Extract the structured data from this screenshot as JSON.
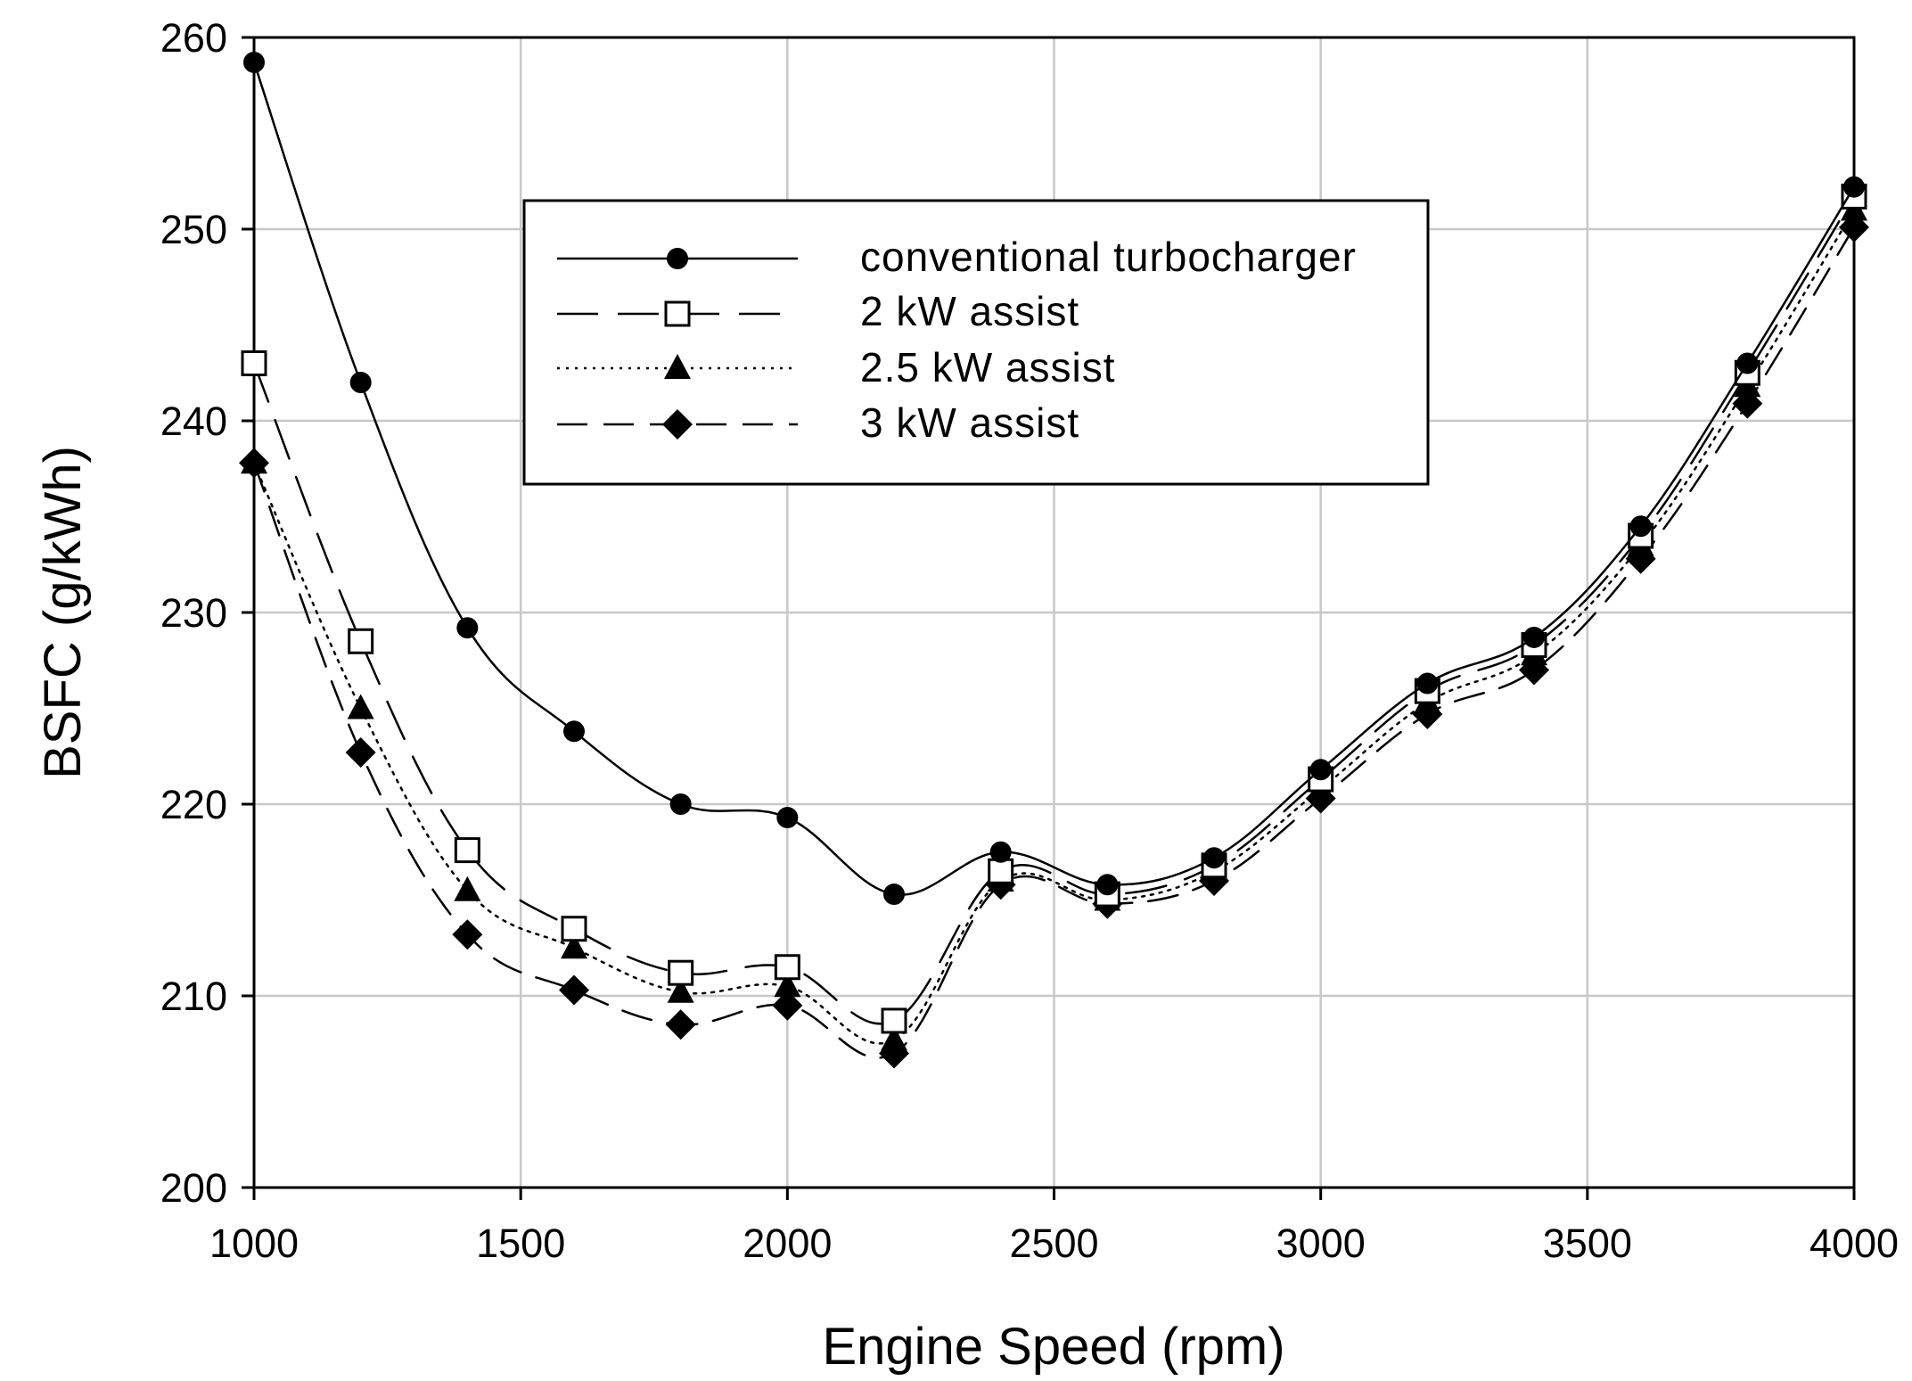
{
  "chart_data": {
    "type": "line",
    "title": "",
    "xlabel": "Engine Speed (rpm)",
    "ylabel": "BSFC (g/kWh)",
    "xlim": [
      1000,
      4000
    ],
    "ylim": [
      200,
      260
    ],
    "xticks": [
      1000,
      1500,
      2000,
      2500,
      3000,
      3500,
      4000
    ],
    "yticks": [
      200,
      210,
      220,
      230,
      240,
      250,
      260
    ],
    "grid": true,
    "legend_position": "top-center",
    "x": [
      1000,
      1200,
      1400,
      1600,
      1800,
      2000,
      2200,
      2400,
      2600,
      2800,
      3000,
      3200,
      3400,
      3600,
      3800,
      4000
    ],
    "series": [
      {
        "name": "conventional turbocharger",
        "marker": "circle",
        "line": "solid",
        "values": [
          258.7,
          242.0,
          229.2,
          223.8,
          220.0,
          219.3,
          215.3,
          217.5,
          215.8,
          217.2,
          221.8,
          226.3,
          228.7,
          234.5,
          243.0,
          252.2
        ]
      },
      {
        "name": "2 kW assist",
        "marker": "square-open",
        "line": "long-dash",
        "values": [
          243.0,
          228.5,
          217.6,
          213.5,
          211.2,
          211.5,
          208.7,
          216.5,
          215.3,
          216.8,
          221.3,
          225.9,
          228.3,
          234.0,
          242.5,
          251.7
        ]
      },
      {
        "name": "2.5 kW assist",
        "marker": "triangle",
        "line": "dotted",
        "values": [
          237.8,
          225.0,
          215.5,
          212.5,
          210.2,
          210.5,
          207.7,
          216.0,
          215.0,
          216.5,
          220.8,
          225.3,
          227.8,
          233.5,
          241.8,
          251.0
        ]
      },
      {
        "name": "3 kW assist",
        "marker": "diamond",
        "line": "dash",
        "values": [
          237.8,
          222.7,
          213.2,
          210.3,
          208.5,
          209.5,
          207.0,
          215.8,
          214.8,
          216.0,
          220.3,
          224.7,
          227.0,
          232.8,
          240.9,
          250.1
        ]
      }
    ]
  }
}
